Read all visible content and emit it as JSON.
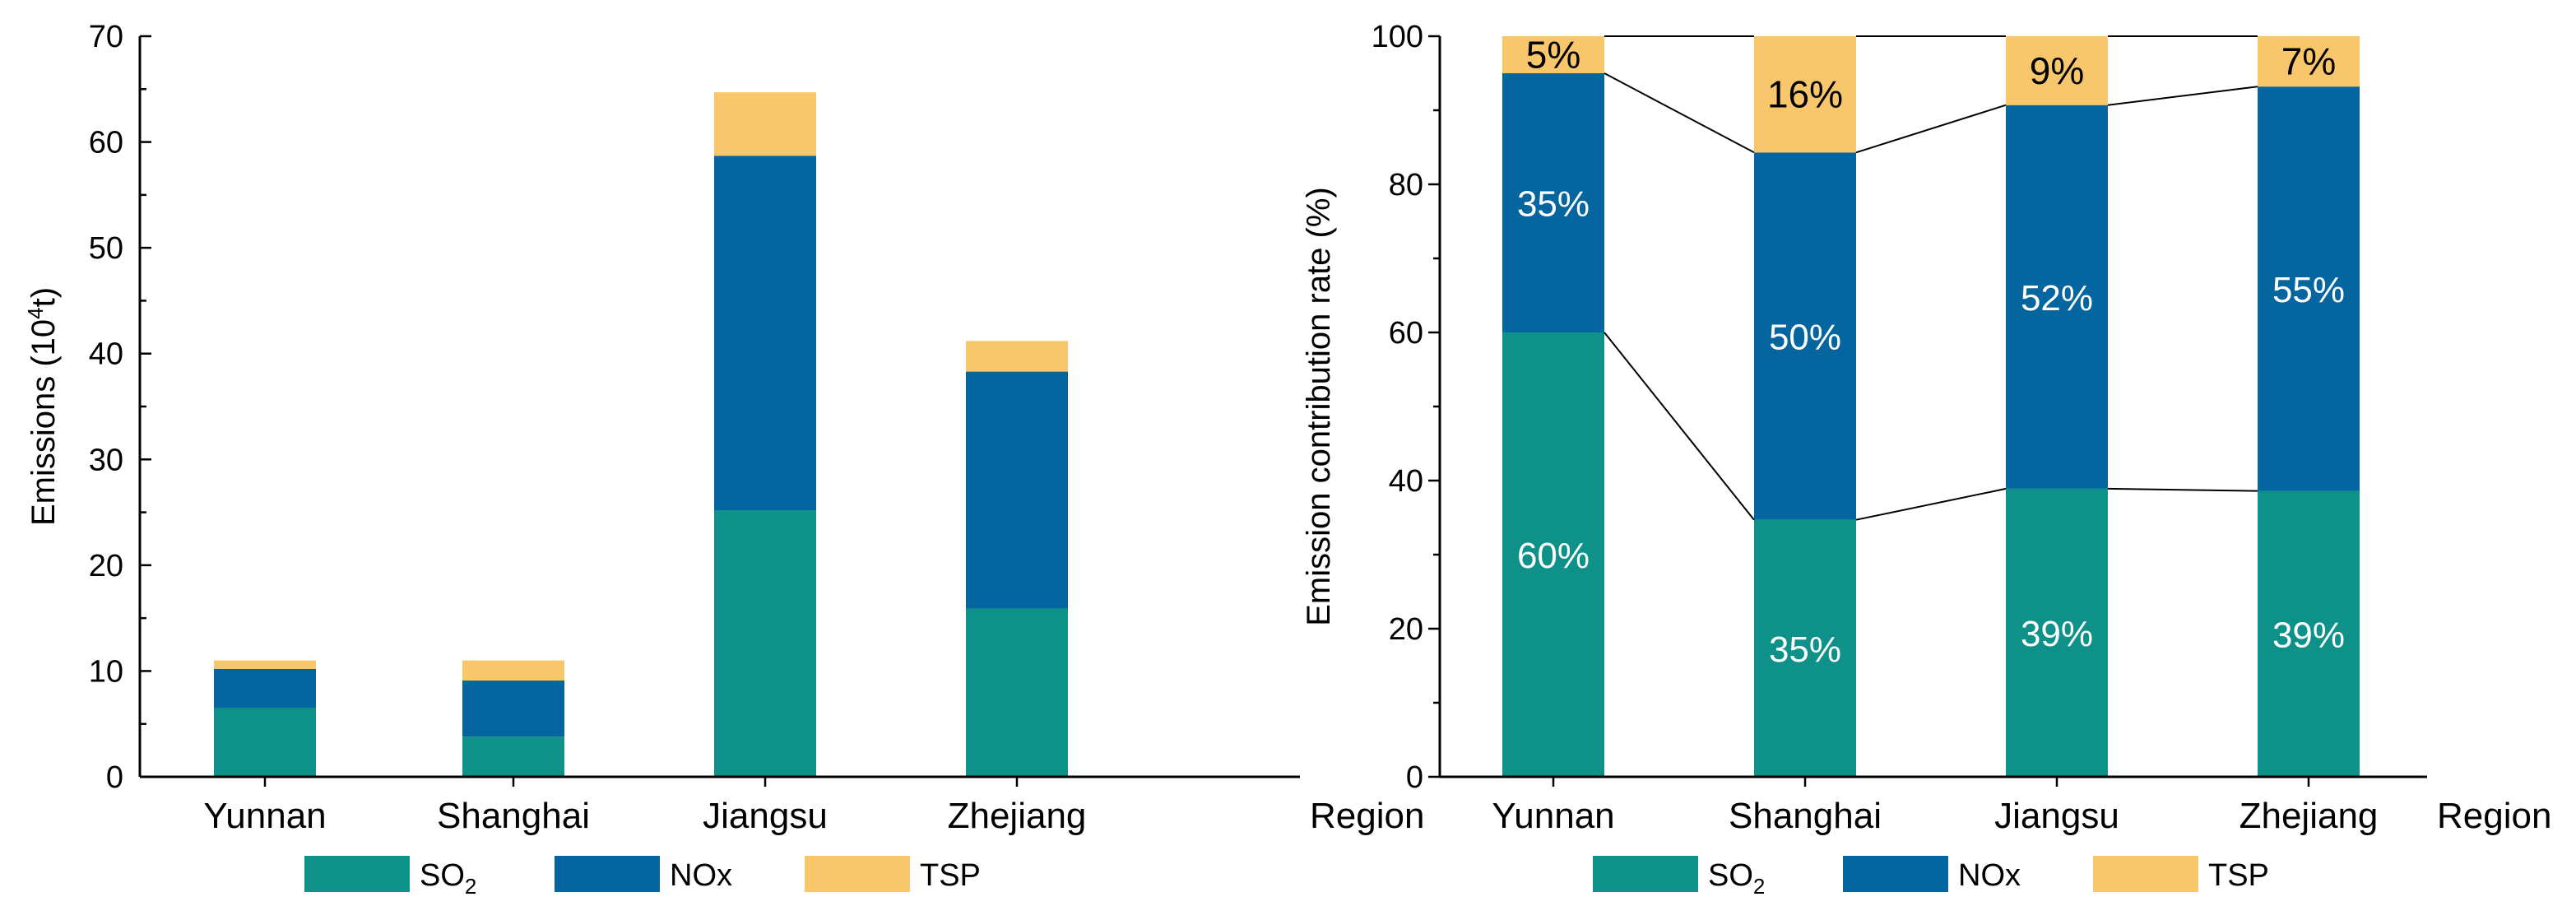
{
  "colors": {
    "SO2": "#0e9189",
    "NOx": "#05659e",
    "TSP": "#f9c76b",
    "axis": "#000000"
  },
  "legend": [
    {
      "key": "SO2",
      "label": "SO",
      "sub": "2"
    },
    {
      "key": "NOx",
      "label": "NOx",
      "sub": ""
    },
    {
      "key": "TSP",
      "label": "TSP",
      "sub": ""
    }
  ],
  "chart_data": [
    {
      "type": "bar",
      "stacked": true,
      "title": "",
      "xlabel": "Region",
      "ylabel": "Emissions (10",
      "ylabel_sup": "4",
      "ylabel_end": "t)",
      "ylim": [
        0,
        70
      ],
      "yticks": [
        0,
        10,
        20,
        30,
        40,
        50,
        60,
        70
      ],
      "categories": [
        "Yunnan",
        "Shanghai",
        "Jiangsu",
        "Zhejiang"
      ],
      "series": [
        {
          "name": "SO2",
          "values": [
            6.5,
            3.8,
            25.2,
            15.9
          ]
        },
        {
          "name": "NOx",
          "values": [
            3.7,
            5.3,
            33.5,
            22.4
          ]
        },
        {
          "name": "TSP",
          "values": [
            0.8,
            1.9,
            6.0,
            2.9
          ]
        }
      ]
    },
    {
      "type": "bar",
      "stacked": true,
      "title": "",
      "xlabel": "Region",
      "ylabel": "Emission contribution rate (%)",
      "ylim": [
        0,
        100
      ],
      "yticks": [
        0,
        20,
        40,
        60,
        80,
        100
      ],
      "categories": [
        "Yunnan",
        "Shanghai",
        "Jiangsu",
        "Zhejiang"
      ],
      "series": [
        {
          "name": "SO2",
          "values": [
            60,
            34.7,
            38.9,
            38.6
          ],
          "labels": [
            "60%",
            "35%",
            "39%",
            "39%"
          ]
        },
        {
          "name": "NOx",
          "values": [
            35,
            49.6,
            51.8,
            54.6
          ],
          "labels": [
            "35%",
            "50%",
            "52%",
            "55%"
          ]
        },
        {
          "name": "TSP",
          "values": [
            5,
            15.7,
            9.3,
            6.8
          ],
          "labels": [
            "5%",
            "16%",
            "9%",
            "7%"
          ]
        }
      ],
      "connector_lines": true
    }
  ]
}
